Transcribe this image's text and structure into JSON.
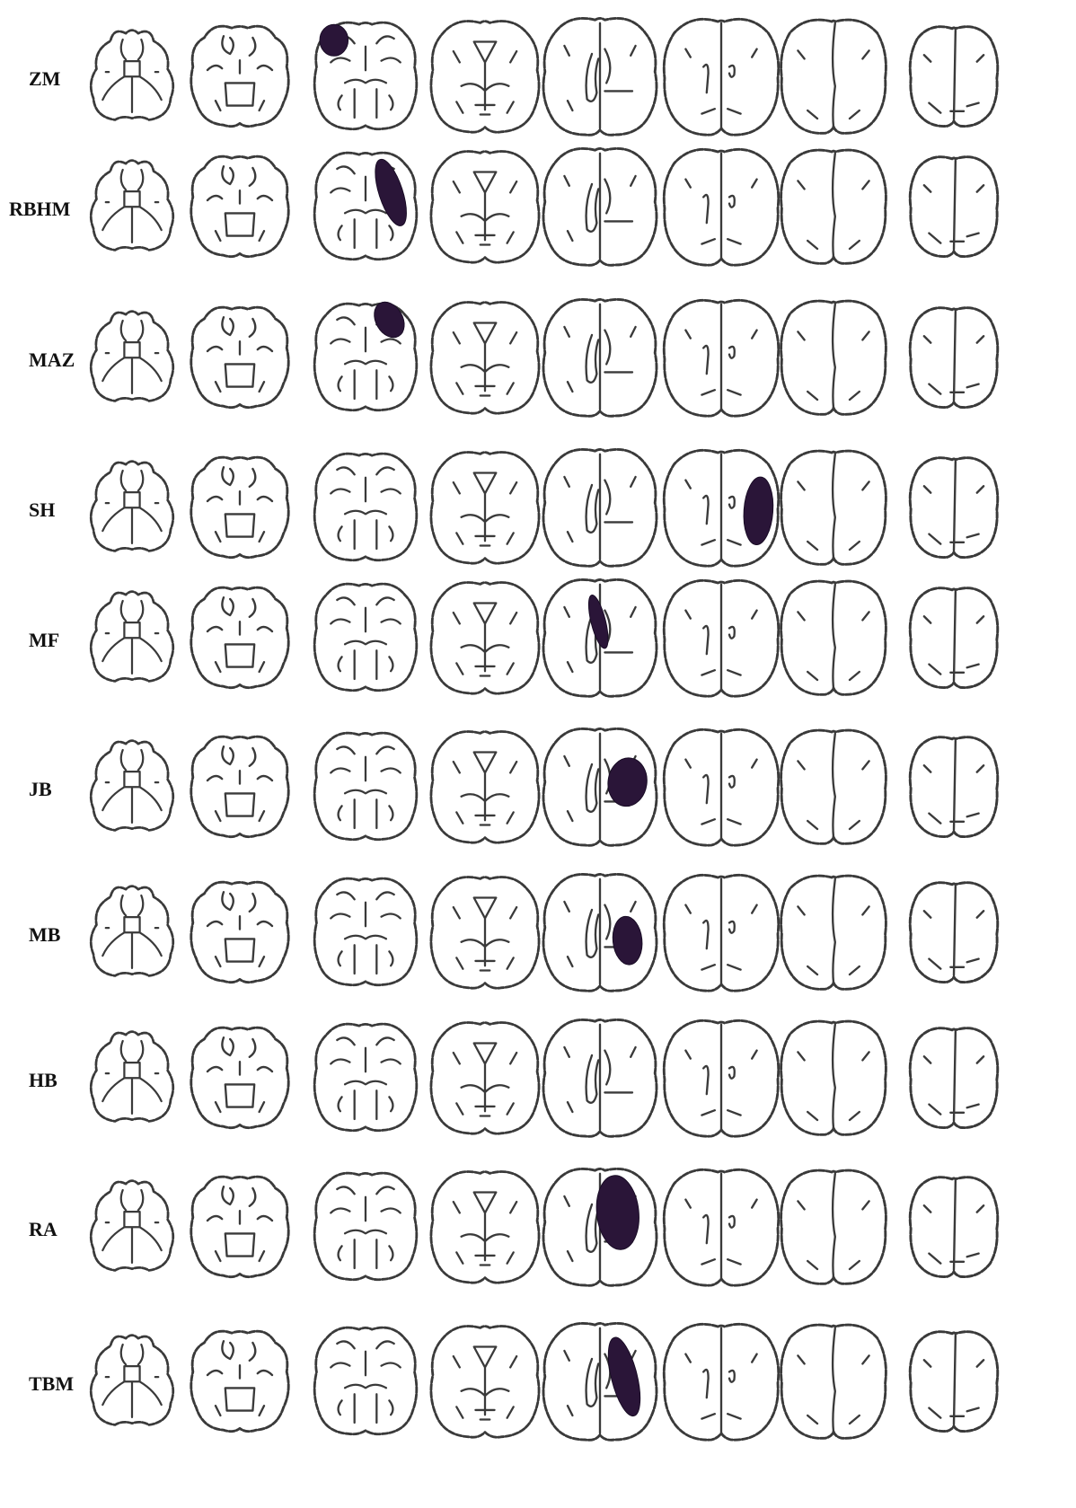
{
  "lesion_color": "#2a1538",
  "rows": [
    {
      "label": "ZM",
      "lesion": {
        "slice": 3,
        "shape": "round-frontal-left"
      }
    },
    {
      "label": "RBHM",
      "lesion": {
        "slice": 3,
        "shape": "elongated-frontal-right"
      }
    },
    {
      "label": "MAZ",
      "lesion": {
        "slice": 3,
        "shape": "oval-frontal-right"
      }
    },
    {
      "label": "SH",
      "lesion": {
        "slice": 6,
        "shape": "oval-parietal-right"
      }
    },
    {
      "label": "MF",
      "lesion": {
        "slice": 5,
        "shape": "elongated-periventricular"
      }
    },
    {
      "label": "JB",
      "lesion": {
        "slice": 5,
        "shape": "large-right"
      }
    },
    {
      "label": "MB",
      "lesion": {
        "slice": 5,
        "shape": "oval-right"
      }
    },
    {
      "label": "HB",
      "lesion": null
    },
    {
      "label": "RA",
      "lesion": {
        "slice": 5,
        "shape": "large-frontal-right"
      }
    },
    {
      "label": "TBM",
      "lesion": {
        "slice": 5,
        "shape": "elongated-right"
      }
    }
  ]
}
